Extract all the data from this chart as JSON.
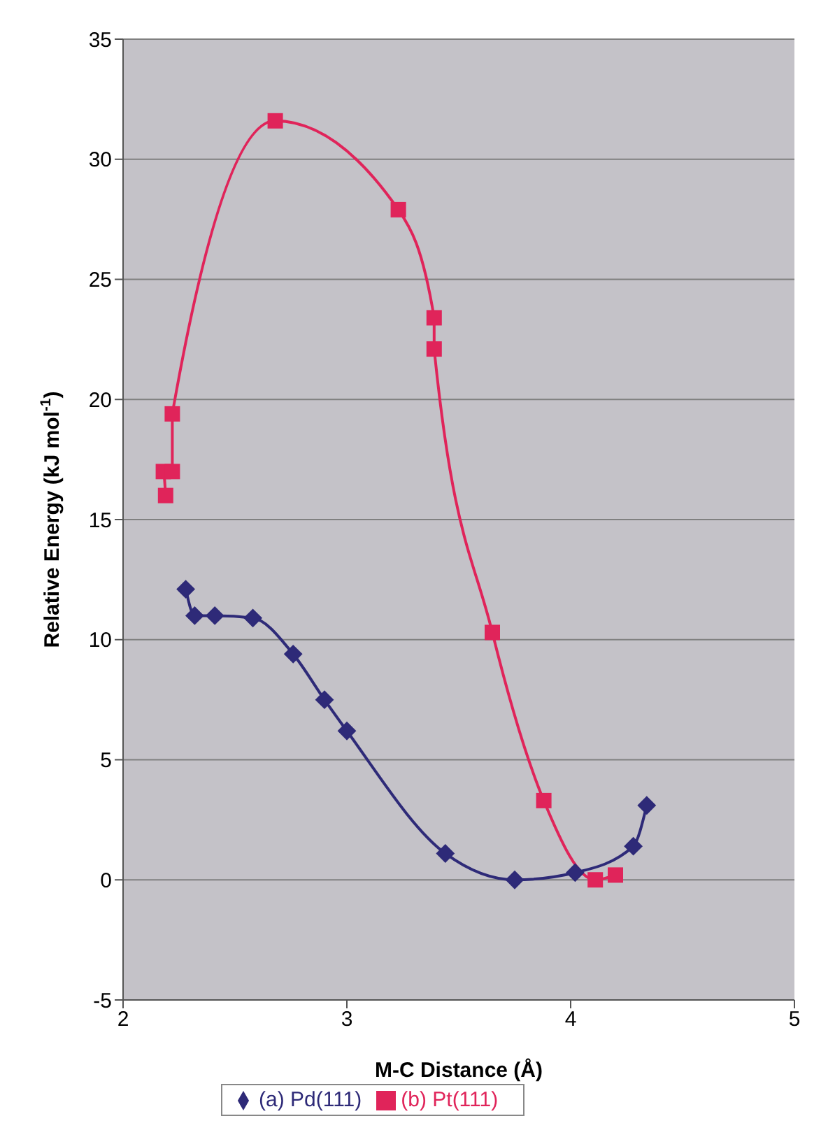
{
  "chart_data": {
    "type": "line",
    "xlabel": "M-C Distance (Å)",
    "ylabel": "Relative Energy (kJ mol$^{-1}$)",
    "xlim": [
      2,
      5
    ],
    "xticks": [
      2,
      3,
      4,
      5
    ],
    "ylim": [
      -5,
      35
    ],
    "yticks": [
      -5,
      0,
      5,
      10,
      15,
      20,
      25,
      30,
      35
    ],
    "grid": "y",
    "legend": "bottom",
    "series": [
      {
        "name": "(a) Pd(111)",
        "color": "#2e2a78",
        "marker": "diamond",
        "x": [
          2.28,
          2.32,
          2.41,
          2.58,
          2.76,
          2.9,
          3.0,
          3.44,
          3.75,
          4.02,
          4.28,
          4.34
        ],
        "values": [
          12.1,
          11.0,
          11.0,
          10.9,
          9.4,
          7.5,
          6.2,
          1.1,
          0.0,
          0.3,
          1.4,
          3.1
        ]
      },
      {
        "name": "(b) Pt(111)",
        "color": "#e0245a",
        "marker": "square",
        "x": [
          2.19,
          2.18,
          2.22,
          2.22,
          2.68,
          3.23,
          3.39,
          3.39,
          3.65,
          3.88,
          4.11,
          4.2
        ],
        "values": [
          16.0,
          17.0,
          17.0,
          19.4,
          31.6,
          27.9,
          23.4,
          22.1,
          10.3,
          3.3,
          0.0,
          0.2
        ]
      }
    ]
  }
}
